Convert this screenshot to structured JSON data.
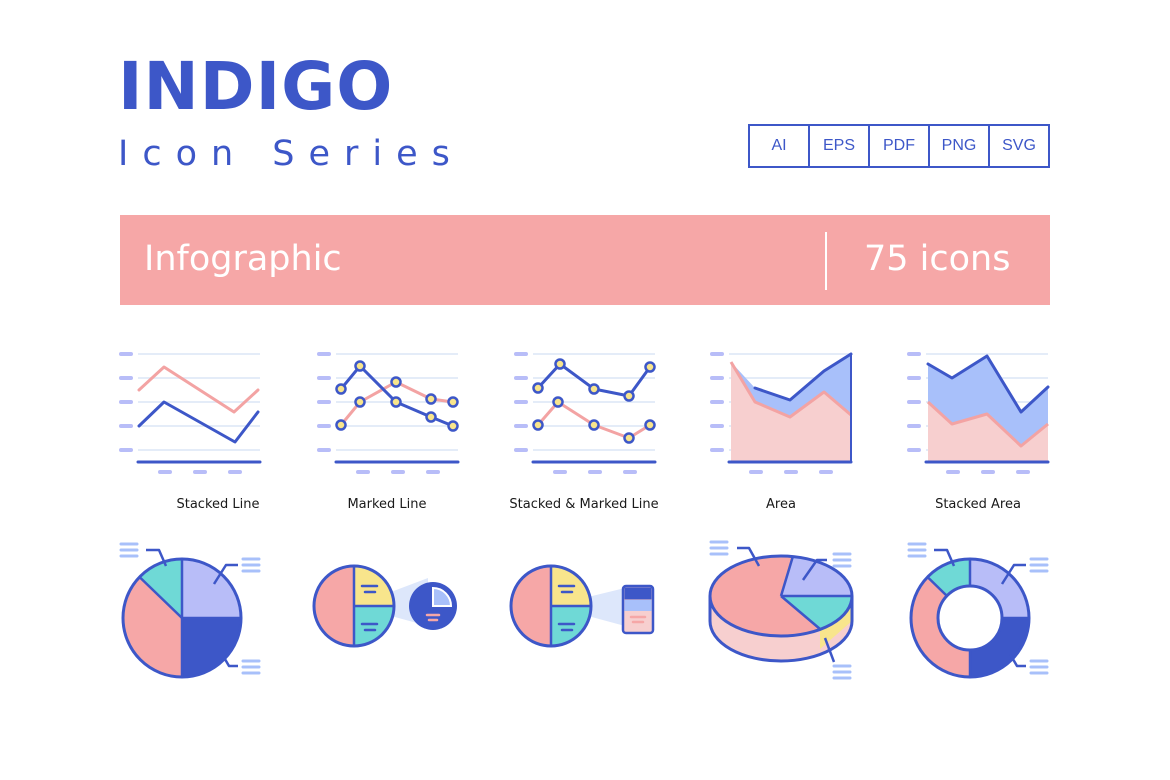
{
  "header": {
    "brand": "INDIGO",
    "subtitle": "Icon Series",
    "formats": [
      "AI",
      "EPS",
      "PDF",
      "PNG",
      "SVG"
    ]
  },
  "banner": {
    "category": "Infographic",
    "count": "75 icons"
  },
  "icons": [
    {
      "name": "stacked-line-icon",
      "label": "Stacked Line"
    },
    {
      "name": "marked-line-icon",
      "label": "Marked Line"
    },
    {
      "name": "stacked-marked-line-icon",
      "label": "Stacked & Marked Line"
    },
    {
      "name": "area-chart-icon",
      "label": "Area"
    },
    {
      "name": "stacked-area-icon",
      "label": "Stacked Area"
    },
    {
      "name": "pie-chart-icon",
      "label": ""
    },
    {
      "name": "pie-zoom-circle-icon",
      "label": ""
    },
    {
      "name": "pie-zoom-card-icon",
      "label": ""
    },
    {
      "name": "pie-3d-icon",
      "label": ""
    },
    {
      "name": "donut-chart-icon",
      "label": ""
    }
  ],
  "colors": {
    "indigo": "#3D57C8",
    "pink": "#F6A7A7",
    "light_blue": "#A8C0FA",
    "lavender": "#B8BDF8",
    "teal": "#6FD9D6",
    "yellow": "#F8E58C",
    "grid": "#E4ECF8"
  }
}
